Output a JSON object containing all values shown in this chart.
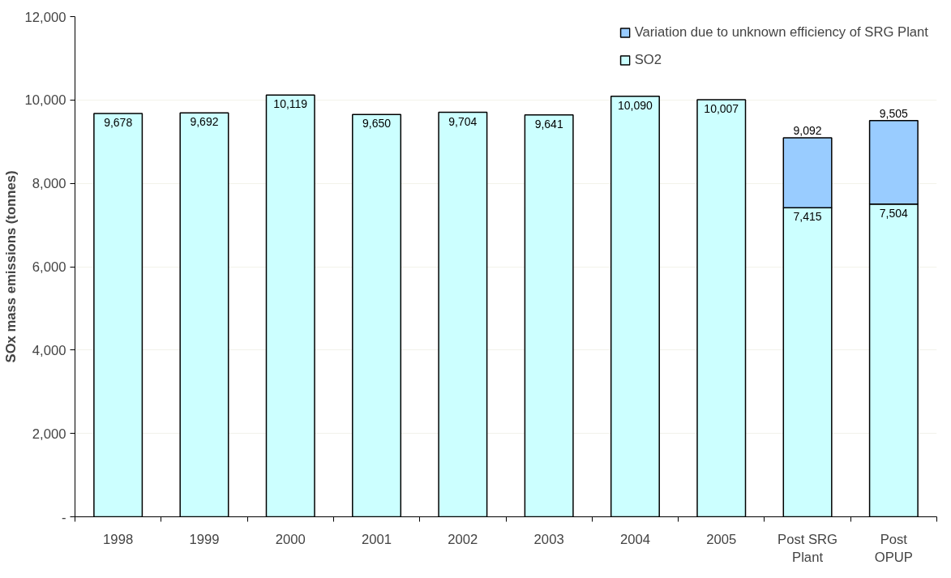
{
  "chart_data": {
    "type": "bar",
    "stacked": true,
    "ylabel": "SOx mass emissions (tonnes)",
    "categories": [
      "1998",
      "1999",
      "2000",
      "2001",
      "2002",
      "2003",
      "2004",
      "2005",
      "Post SRG Plant",
      "Post OPUP"
    ],
    "series": [
      {
        "name": "SO2",
        "color": "#ccffff",
        "values": [
          9678,
          9692,
          10119,
          9650,
          9704,
          9641,
          10090,
          10007,
          7415,
          7504
        ],
        "value_labels": [
          "9,678",
          "9,692",
          "10,119",
          "9,650",
          "9,704",
          "9,641",
          "10,090",
          "10,007",
          "7,415",
          "7,504"
        ]
      },
      {
        "name": "Variation due to unknown efficiency of SRG Plant",
        "color": "#99ccff",
        "values": [
          null,
          null,
          null,
          null,
          null,
          null,
          null,
          null,
          1677,
          2001
        ]
      }
    ],
    "totals": [
      null,
      null,
      null,
      null,
      null,
      null,
      null,
      null,
      "9,092",
      "9,505"
    ],
    "ylim": [
      0,
      12000
    ],
    "yticks": [
      {
        "value": 0,
        "label": "-"
      },
      {
        "value": 2000,
        "label": "2,000"
      },
      {
        "value": 4000,
        "label": "4,000"
      },
      {
        "value": 6000,
        "label": "6,000"
      },
      {
        "value": 8000,
        "label": "8,000"
      },
      {
        "value": 10000,
        "label": "10,000"
      },
      {
        "value": 12000,
        "label": "12,000"
      }
    ],
    "grid": "y",
    "legend": "top right"
  }
}
